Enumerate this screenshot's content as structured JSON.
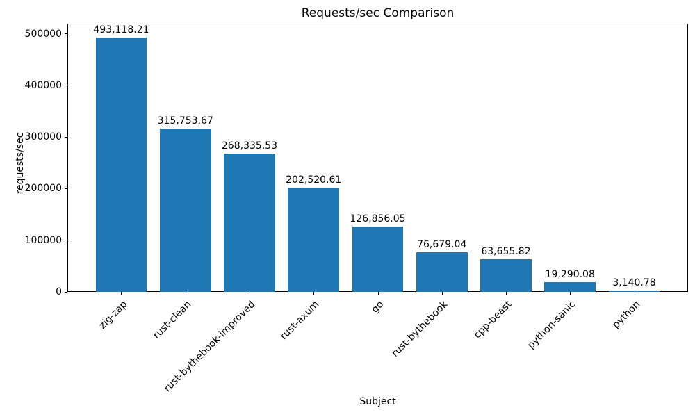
{
  "chart_data": {
    "type": "bar",
    "title": "Requests/sec Comparison",
    "xlabel": "Subject",
    "ylabel": "requests/sec",
    "categories": [
      "zig-zap",
      "rust-clean",
      "rust-bythebook-improved",
      "rust-axum",
      "go",
      "rust-bythebook",
      "cpp-beast",
      "python-sanic",
      "python"
    ],
    "values": [
      493118.21,
      315753.67,
      268335.53,
      202520.61,
      126856.05,
      76679.04,
      63655.82,
      19290.08,
      3140.78
    ],
    "bar_labels": [
      "493,118.21",
      "315,753.67",
      "268,335.53",
      "202,520.61",
      "126,856.05",
      "76,679.04",
      "63,655.82",
      "19,290.08",
      "3,140.78"
    ],
    "yticks": [
      0,
      100000,
      200000,
      300000,
      400000,
      500000
    ],
    "ytick_labels": [
      "0",
      "100000",
      "200000",
      "300000",
      "400000",
      "500000"
    ],
    "ylim": [
      0,
      519600
    ],
    "bar_color": "#1f77b4",
    "grid": false,
    "legend": null,
    "x_tick_rotation": 45,
    "background_color": "#ffffff",
    "text_color": "#000000"
  }
}
